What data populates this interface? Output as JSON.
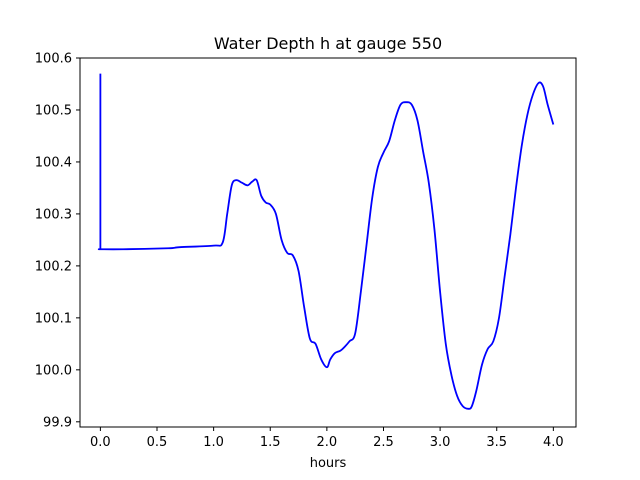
{
  "chart_data": {
    "type": "line",
    "title": "Water Depth h at gauge 550",
    "xlabel": "hours",
    "ylabel": "",
    "xlim": [
      -0.18,
      4.2
    ],
    "ylim": [
      99.89,
      100.6
    ],
    "xticks": [
      0.0,
      0.5,
      1.0,
      1.5,
      2.0,
      2.5,
      3.0,
      3.5,
      4.0
    ],
    "xtick_labels": [
      "0.0",
      "0.5",
      "1.0",
      "1.5",
      "2.0",
      "2.5",
      "3.0",
      "3.5",
      "4.0"
    ],
    "yticks": [
      99.9,
      100.0,
      100.1,
      100.2,
      100.3,
      100.4,
      100.5,
      100.6
    ],
    "ytick_labels": [
      "99.9",
      "100.0",
      "100.1",
      "100.2",
      "100.3",
      "100.4",
      "100.5",
      "100.6"
    ],
    "grid": false,
    "series": [
      {
        "color": "#0000ff",
        "x": [
          0.0,
          0.0,
          0.0,
          0.2,
          0.6,
          0.7,
          1.0,
          1.08,
          1.12,
          1.16,
          1.2,
          1.25,
          1.3,
          1.34,
          1.38,
          1.42,
          1.46,
          1.5,
          1.55,
          1.6,
          1.65,
          1.7,
          1.75,
          1.8,
          1.85,
          1.9,
          1.95,
          2.0,
          2.03,
          2.07,
          2.12,
          2.16,
          2.2,
          2.25,
          2.3,
          2.35,
          2.4,
          2.45,
          2.5,
          2.55,
          2.6,
          2.65,
          2.7,
          2.75,
          2.8,
          2.85,
          2.9,
          2.95,
          3.0,
          3.05,
          3.1,
          3.15,
          3.2,
          3.25,
          3.28,
          3.32,
          3.37,
          3.42,
          3.47,
          3.52,
          3.57,
          3.62,
          3.67,
          3.72,
          3.77,
          3.82,
          3.87,
          3.91,
          3.95,
          4.0
        ],
        "y": [
          100.57,
          100.232,
          100.232,
          100.232,
          100.234,
          100.236,
          100.239,
          100.245,
          100.3,
          100.355,
          100.365,
          100.36,
          100.355,
          100.362,
          100.365,
          100.335,
          100.322,
          100.318,
          100.3,
          100.25,
          100.225,
          100.22,
          100.19,
          100.12,
          100.06,
          100.05,
          100.02,
          100.005,
          100.02,
          100.032,
          100.037,
          100.045,
          100.055,
          100.07,
          100.15,
          100.24,
          100.33,
          100.39,
          100.418,
          100.44,
          100.48,
          100.51,
          100.515,
          100.51,
          100.48,
          100.42,
          100.36,
          100.27,
          100.15,
          100.05,
          99.99,
          99.95,
          99.93,
          99.925,
          99.93,
          99.96,
          100.01,
          100.04,
          100.055,
          100.1,
          100.18,
          100.26,
          100.35,
          100.43,
          100.49,
          100.53,
          100.552,
          100.545,
          100.51,
          100.472
        ]
      }
    ]
  }
}
